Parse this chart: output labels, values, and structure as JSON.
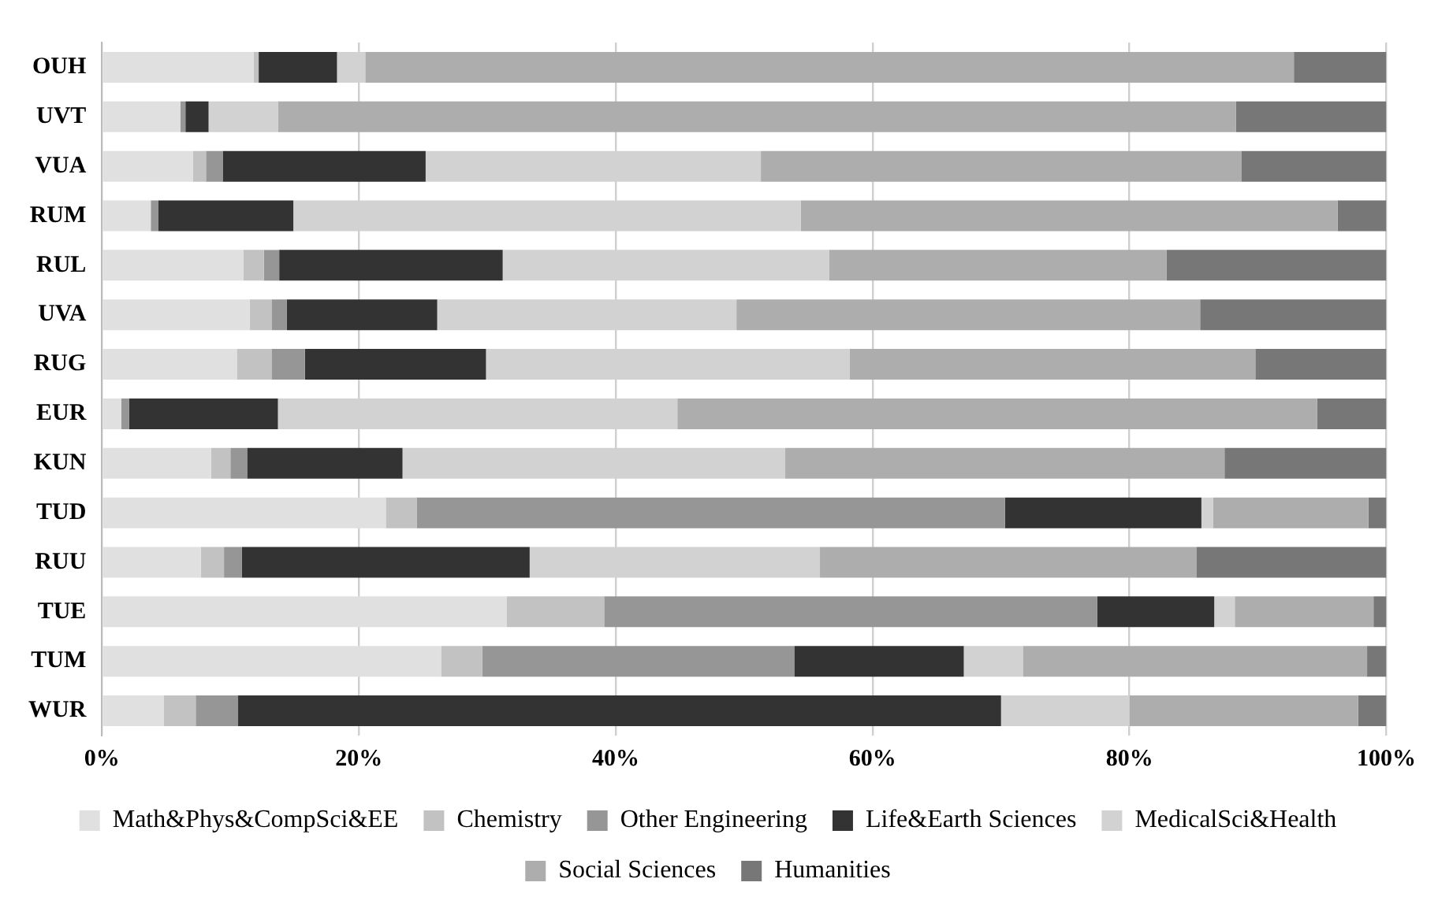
{
  "chart_data": {
    "type": "bar",
    "orientation": "horizontal",
    "stacked": true,
    "categories": [
      "OUH",
      "UVT",
      "VUA",
      "RUM",
      "RUL",
      "UVA",
      "RUG",
      "EUR",
      "KUN",
      "TUD",
      "RUU",
      "TUE",
      "TUM",
      "WUR"
    ],
    "series": [
      {
        "name": "Math&Phys&CompSci&EE",
        "color": "#e0e0e0",
        "values": [
          11.8,
          6.1,
          7.1,
          3.8,
          11.0,
          11.5,
          10.5,
          1.5,
          8.5,
          22.1,
          7.7,
          31.5,
          26.4,
          4.8
        ]
      },
      {
        "name": "Chemistry",
        "color": "#c2c2c2",
        "values": [
          0.4,
          0,
          1.0,
          0,
          1.6,
          1.7,
          2.7,
          0,
          1.5,
          2.4,
          1.8,
          7.6,
          3.2,
          2.5
        ]
      },
      {
        "name": "Other Engineering",
        "color": "#969696",
        "values": [
          0,
          0.4,
          1.3,
          0.6,
          1.2,
          1.2,
          2.6,
          0.6,
          1.3,
          45.8,
          1.4,
          38.4,
          24.3,
          3.3
        ]
      },
      {
        "name": "Life&Earth Sciences",
        "color": "#333333",
        "values": [
          6.1,
          1.8,
          15.8,
          10.5,
          17.4,
          11.7,
          14.1,
          11.6,
          12.1,
          15.3,
          22.4,
          9.1,
          13.2,
          59.4
        ]
      },
      {
        "name": "MedicalSci&Health",
        "color": "#d2d2d2",
        "values": [
          2.2,
          5.4,
          26.1,
          39.5,
          25.4,
          23.3,
          28.3,
          31.1,
          29.8,
          0.9,
          22.6,
          1.6,
          4.6,
          10.0
        ]
      },
      {
        "name": "Social Sciences",
        "color": "#adadad",
        "values": [
          72.3,
          74.6,
          37.4,
          41.8,
          26.3,
          36.1,
          31.6,
          49.8,
          34.2,
          12.1,
          29.3,
          10.8,
          26.8,
          17.8
        ]
      },
      {
        "name": "Humanities",
        "color": "#777777",
        "values": [
          7.2,
          11.7,
          11.3,
          3.8,
          17.1,
          14.5,
          10.2,
          5.4,
          12.6,
          1.4,
          14.8,
          1.0,
          1.5,
          2.2
        ]
      }
    ],
    "xlim": [
      0,
      100
    ],
    "xticks": [
      {
        "value": 0,
        "label": "0%"
      },
      {
        "value": 20,
        "label": "20%"
      },
      {
        "value": 40,
        "label": "40%"
      },
      {
        "value": 60,
        "label": "60%"
      },
      {
        "value": 80,
        "label": "80%"
      },
      {
        "value": 100,
        "label": "100%"
      }
    ],
    "grid": "x",
    "legend": "bottom"
  }
}
